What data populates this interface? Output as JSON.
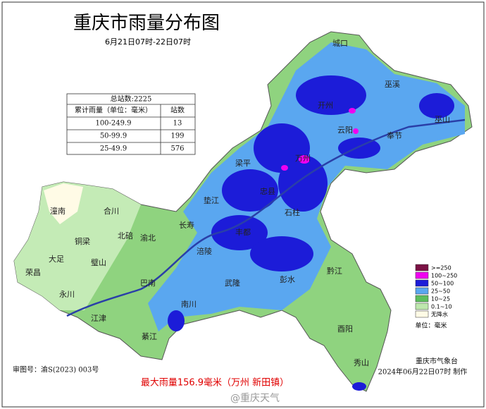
{
  "header": {
    "title": "重庆市雨量分布图",
    "subtitle": "6月21日07时-22日07时"
  },
  "table": {
    "title": "总站数:2225",
    "columns": [
      "累计雨量（单位：毫米）",
      "站数"
    ],
    "rows": [
      [
        "100-249.9",
        "13"
      ],
      [
        "50-99.9",
        "199"
      ],
      [
        "25-49.9",
        "576"
      ]
    ]
  },
  "legend": {
    "items": [
      {
        "label": ">=250",
        "color": "#7b1245"
      },
      {
        "label": "100~250",
        "color": "#f000f0"
      },
      {
        "label": "50~100",
        "color": "#1c1cd8"
      },
      {
        "label": "25~50",
        "color": "#5aa7f0"
      },
      {
        "label": "10~25",
        "color": "#5dbe5d"
      },
      {
        "label": "0.1~10",
        "color": "#bde7ad"
      },
      {
        "label": "无降水",
        "color": "#fffbe6"
      }
    ],
    "unit": "单位：毫米"
  },
  "districts": [
    "城口",
    "巫溪",
    "巫山",
    "开州",
    "云阳",
    "奉节",
    "万州",
    "梁平",
    "忠县",
    "垫江",
    "石柱",
    "长寿",
    "潼南",
    "合川",
    "北碚",
    "渝北",
    "铜梁",
    "大足",
    "荣昌",
    "璧山",
    "涪陵",
    "丰都",
    "黔江",
    "武隆",
    "彭水",
    "永川",
    "巴南",
    "江津",
    "南川",
    "綦江",
    "酉阳",
    "秀山"
  ],
  "footer": {
    "map_no": "审图号：渝S(2023) 003号",
    "max_rain": "最大雨量156.9毫米（万州 新田镇）",
    "agency": "重庆市气象台",
    "made": "2024年06月22日07时 制作",
    "watermark": "@重庆天气"
  }
}
